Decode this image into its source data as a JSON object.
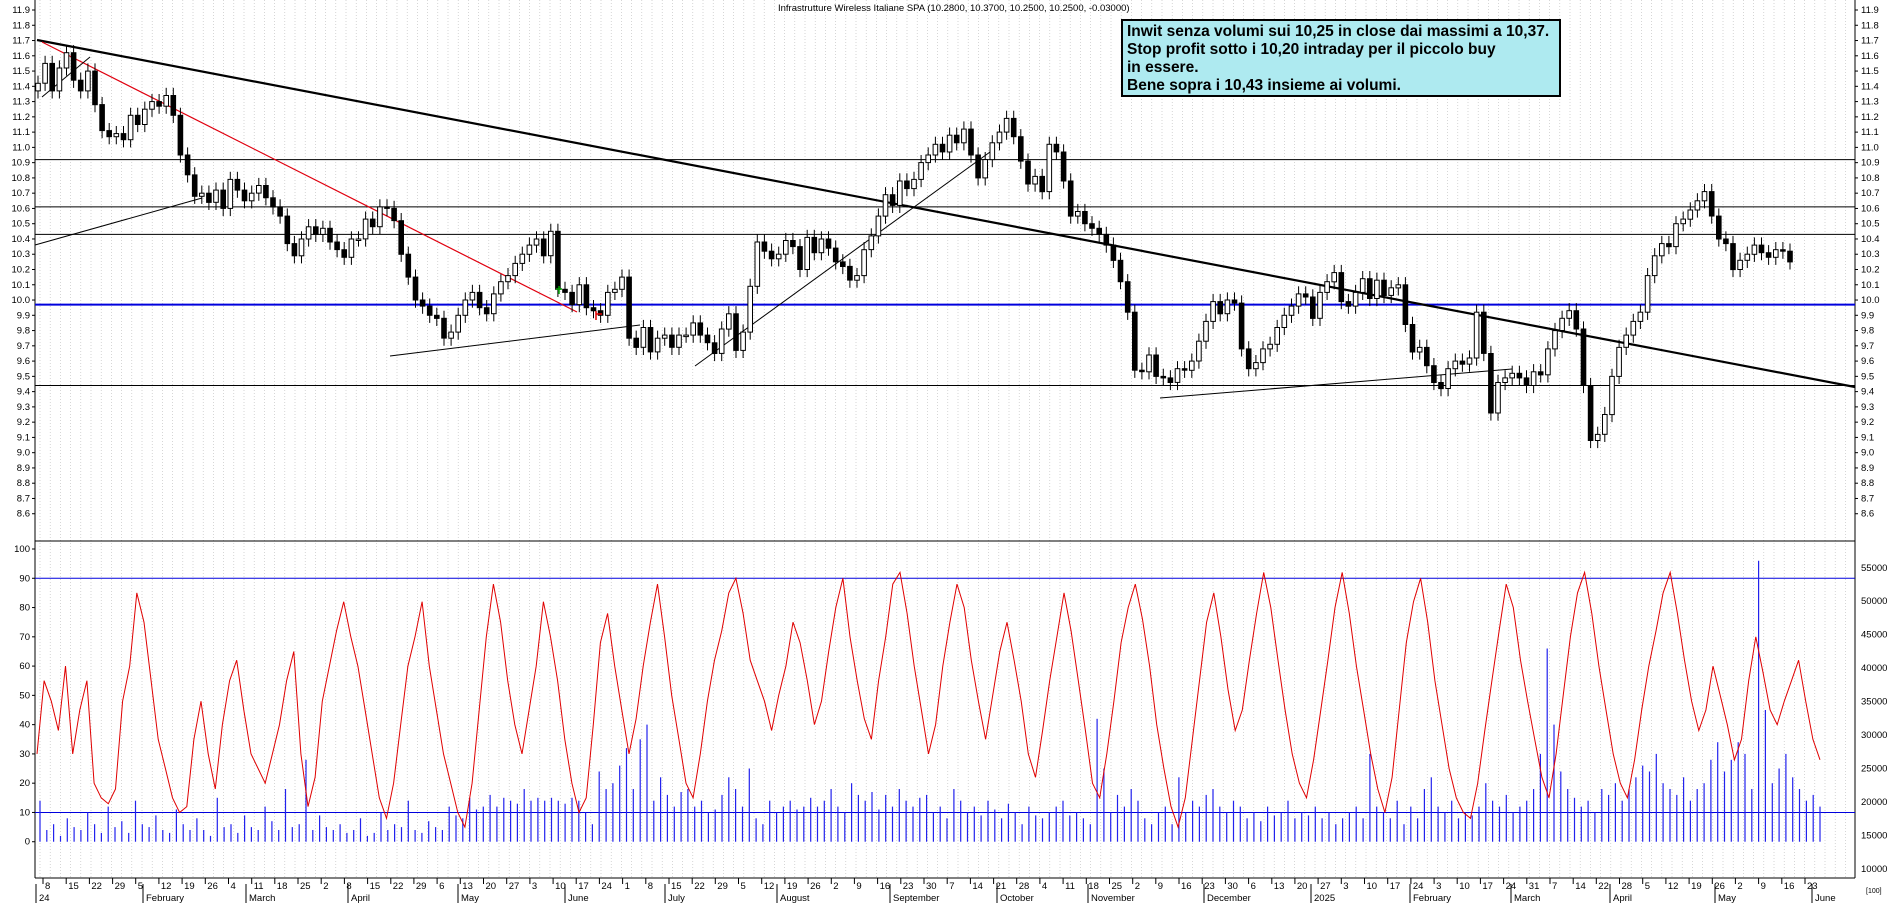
{
  "title": "Infrastrutture Wireless Italiane SPA (10.2800, 10.3700, 10.2500, 10.2500, -0.03000)",
  "annotation_lines": [
    "Inwit senza volumi sui 10,25 in close dai massimi a 10,37.",
    "Stop profit sotto i 10,20 intraday per il piccolo buy",
    "in essere.",
    "Bene sopra i 10,43 insieme ai volumi."
  ],
  "colors": {
    "candle": "#000000",
    "trendline_black": "#000000",
    "trendline_red": "#e0000f",
    "support_blue": "#0000dd",
    "oscillator": "#e00000",
    "volume": "#2222ee",
    "annotation_bg": "#aeeaf0",
    "grid": "#bbbbbb"
  },
  "chart_data": [
    {
      "type": "candlestick",
      "title": "Infrastrutture Wireless Italiane SPA (10.2800, 10.3700, 10.2500, 10.2500, -0.03000)",
      "ylim": [
        8.5,
        11.9
      ],
      "y_ticks": [
        "8.6",
        "8.7",
        "8.8",
        "8.9",
        "9.0",
        "9.1",
        "9.2",
        "9.3",
        "9.4",
        "9.5",
        "9.6",
        "9.7",
        "9.8",
        "9.9",
        "10.0",
        "10.1",
        "10.2",
        "10.3",
        "10.4",
        "10.5",
        "10.6",
        "10.7",
        "10.8",
        "10.9",
        "11.0",
        "11.1",
        "11.2",
        "11.3",
        "11.4",
        "11.5",
        "11.6",
        "11.7",
        "11.8",
        "11.9"
      ],
      "horizontal_levels": [
        10.92,
        10.61,
        10.43,
        9.97,
        9.44
      ],
      "blue_level": 9.97,
      "x_tick_labels": [
        "8",
        "15",
        "22",
        "29",
        "5",
        "12",
        "19",
        "26",
        "4",
        "11",
        "18",
        "25",
        "2",
        "8",
        "15",
        "22",
        "29",
        "6",
        "13",
        "20",
        "27",
        "3",
        "10",
        "17",
        "24",
        "1",
        "8",
        "15",
        "22",
        "29",
        "5",
        "12",
        "19",
        "26",
        "2",
        "9",
        "16",
        "23",
        "30",
        "7",
        "14",
        "21",
        "28",
        "4",
        "11",
        "18",
        "25",
        "2",
        "9",
        "16",
        "23",
        "30",
        "6",
        "13",
        "20",
        "27",
        "3",
        "10",
        "17",
        "24",
        "3",
        "10",
        "17",
        "24",
        "31",
        "7",
        "14",
        "22",
        "28",
        "5",
        "12",
        "19",
        "26",
        "2",
        "9",
        "16",
        "23"
      ],
      "month_labels": [
        "24",
        "February",
        "March",
        "April",
        "May",
        "June",
        "July",
        "August",
        "September",
        "October",
        "November",
        "December",
        "2025",
        "February",
        "March",
        "April",
        "May",
        "June"
      ],
      "closes": [
        11.42,
        11.55,
        11.37,
        11.52,
        11.62,
        11.44,
        11.37,
        11.5,
        11.28,
        11.11,
        11.07,
        11.09,
        11.05,
        11.21,
        11.15,
        11.25,
        11.3,
        11.27,
        11.34,
        11.21,
        10.95,
        10.82,
        10.68,
        10.7,
        10.64,
        10.72,
        10.6,
        10.79,
        10.72,
        10.65,
        10.7,
        10.75,
        10.67,
        10.61,
        10.55,
        10.37,
        10.29,
        10.4,
        10.48,
        10.43,
        10.47,
        10.38,
        10.33,
        10.28,
        10.4,
        10.4,
        10.53,
        10.48,
        10.61,
        10.6,
        10.52,
        10.3,
        10.15,
        10.0,
        9.96,
        9.9,
        9.88,
        9.75,
        9.79,
        9.9,
        10.0,
        10.05,
        9.95,
        9.91,
        10.04,
        10.12,
        10.16,
        10.24,
        10.3,
        10.36,
        10.4,
        10.29,
        10.45,
        10.07,
        10.05,
        9.97,
        10.1,
        9.95,
        9.93,
        9.9,
        10.05,
        10.07,
        10.15,
        9.75,
        9.69,
        9.82,
        9.66,
        9.75,
        9.77,
        9.69,
        9.77,
        9.77,
        9.85,
        9.77,
        9.72,
        9.65,
        9.81,
        9.91,
        9.67,
        9.79,
        10.09,
        10.38,
        10.32,
        10.27,
        10.3,
        10.39,
        10.35,
        10.2,
        10.41,
        10.31,
        10.4,
        10.34,
        10.25,
        10.22,
        10.13,
        10.16,
        10.33,
        10.42,
        10.55,
        10.69,
        10.62,
        10.78,
        10.73,
        10.79,
        10.9,
        10.95,
        11.02,
        10.97,
        11.08,
        11.03,
        11.12,
        10.95,
        10.8,
        10.92,
        11.03,
        11.1,
        11.19,
        11.07,
        10.91,
        10.76,
        10.81,
        10.71,
        11.02,
        10.97,
        10.78,
        10.55,
        10.58,
        10.5,
        10.47,
        10.43,
        10.36,
        10.26,
        10.12,
        9.92,
        9.54,
        9.53,
        9.64,
        9.5,
        9.49,
        9.46,
        9.55,
        9.54,
        9.6,
        9.73,
        9.86,
        9.99,
        9.91,
        10.0,
        9.98,
        9.68,
        9.55,
        9.59,
        9.68,
        9.71,
        9.82,
        9.9,
        9.96,
        10.04,
        10.02,
        9.88,
        10.05,
        10.12,
        10.18,
        9.99,
        9.96,
        10.05,
        10.14,
        10.01,
        10.13,
        10.03,
        10.08,
        10.1,
        9.84,
        9.66,
        9.69,
        9.57,
        9.46,
        9.42,
        9.55,
        9.6,
        9.58,
        9.62,
        9.92,
        9.65,
        9.26,
        9.46,
        9.49,
        9.52,
        9.49,
        9.44,
        9.53,
        9.51,
        9.68,
        9.8,
        9.88,
        9.93,
        9.81,
        9.44,
        9.08,
        9.12,
        9.25,
        9.5,
        9.69,
        9.77,
        9.86,
        9.92,
        10.16,
        10.29,
        10.37,
        10.35,
        10.5,
        10.53,
        10.59,
        10.65,
        10.71,
        10.55,
        10.4,
        10.37,
        10.2,
        10.26,
        10.3,
        10.36,
        10.31,
        10.28,
        10.33,
        10.32,
        10.25
      ]
    },
    {
      "type": "line",
      "title": "",
      "ylim": [
        -10,
        100
      ],
      "y_ticks": [
        "0",
        "10",
        "20",
        "30",
        "40",
        "50",
        "60",
        "70",
        "80",
        "90",
        "100"
      ],
      "levels": [
        90,
        10
      ],
      "series": [
        {
          "values": [
            30,
            55,
            48,
            38,
            60,
            30,
            45,
            55,
            20,
            15,
            13,
            18,
            48,
            60,
            85,
            75,
            55,
            35,
            25,
            15,
            10,
            12,
            35,
            48,
            30,
            18,
            40,
            55,
            62,
            45,
            30,
            25,
            20,
            30,
            40,
            55,
            65,
            30,
            12,
            22,
            48,
            60,
            72,
            82,
            70,
            60,
            45,
            30,
            15,
            8,
            20,
            40,
            60,
            70,
            82,
            60,
            45,
            30,
            20,
            10,
            5,
            20,
            45,
            70,
            88,
            75,
            55,
            40,
            30,
            45,
            60,
            82,
            70,
            55,
            35,
            20,
            10,
            15,
            40,
            68,
            78,
            60,
            45,
            30,
            42,
            60,
            75,
            88,
            70,
            50,
            35,
            20,
            15,
            30,
            48,
            62,
            72,
            85,
            90,
            78,
            62,
            55,
            48,
            38,
            50,
            60,
            75,
            68,
            55,
            40,
            48,
            65,
            80,
            90,
            70,
            55,
            42,
            35,
            55,
            70,
            88,
            92,
            78,
            60,
            45,
            30,
            40,
            60,
            75,
            88,
            80,
            62,
            48,
            35,
            50,
            65,
            75,
            62,
            48,
            30,
            22,
            38,
            55,
            70,
            85,
            72,
            55,
            38,
            20,
            15,
            30,
            48,
            68,
            80,
            88,
            76,
            60,
            40,
            25,
            12,
            5,
            15,
            35,
            55,
            75,
            85,
            70,
            52,
            38,
            45,
            62,
            78,
            92,
            80,
            62,
            45,
            30,
            20,
            15,
            28,
            45,
            62,
            80,
            92,
            78,
            60,
            45,
            30,
            18,
            10,
            22,
            45,
            68,
            82,
            90,
            75,
            55,
            40,
            25,
            15,
            10,
            8,
            20,
            38,
            55,
            72,
            88,
            80,
            62,
            48,
            35,
            22,
            15,
            30,
            50,
            70,
            85,
            92,
            78,
            60,
            45,
            30,
            20,
            15,
            28,
            45,
            60,
            72,
            85,
            92,
            78,
            62,
            48,
            38,
            45,
            60,
            50,
            40,
            28,
            35,
            55,
            70,
            58,
            45,
            40,
            48,
            55,
            62,
            48,
            35,
            28
          ]
        },
        {
          "values": [
            14,
            4,
            6,
            2,
            8,
            5,
            4,
            10,
            6,
            3,
            12,
            5,
            7,
            3,
            14,
            6,
            5,
            9,
            4,
            3,
            11,
            6,
            4,
            8,
            4,
            2,
            15,
            5,
            6,
            3,
            9,
            5,
            4,
            12,
            7,
            4,
            18,
            5,
            6,
            28,
            4,
            9,
            5,
            4,
            6,
            3,
            4,
            8,
            2,
            3,
            10,
            4,
            6,
            5,
            14,
            4,
            3,
            7,
            5,
            4,
            12,
            9,
            8,
            15,
            11,
            12,
            16,
            12,
            15,
            14,
            13,
            18,
            14,
            15,
            14,
            15,
            14,
            13,
            15,
            14,
            10,
            6,
            24,
            18,
            20,
            26,
            32,
            18,
            35,
            40,
            14,
            22,
            16,
            12,
            17,
            18,
            12,
            14,
            10,
            11,
            16,
            22,
            18,
            12,
            25,
            8,
            6,
            14,
            10,
            12,
            14,
            11,
            12,
            15,
            12,
            14,
            18,
            12,
            10,
            20,
            16,
            14,
            17,
            11,
            16,
            12,
            18,
            14,
            12,
            15,
            16,
            10,
            12,
            8,
            18,
            14,
            10,
            12,
            9,
            14,
            11,
            8,
            13,
            10,
            6,
            12,
            9,
            8,
            10,
            12,
            14,
            9,
            10,
            8,
            6,
            42,
            25,
            10,
            16,
            12,
            18,
            14,
            8,
            6,
            10,
            12,
            6,
            22,
            10,
            14,
            12,
            16,
            18,
            12,
            10,
            14,
            12,
            8,
            10,
            7,
            12,
            9,
            10,
            14,
            8,
            10,
            9,
            12,
            8,
            10,
            6,
            8,
            10,
            12,
            8,
            30,
            12,
            10,
            8,
            14,
            6,
            12,
            8,
            18,
            22,
            12,
            10,
            14,
            8,
            10,
            9,
            12,
            20,
            14,
            12,
            16,
            10,
            12,
            14,
            18,
            30,
            66,
            40,
            24,
            18,
            15,
            12,
            14,
            10,
            18,
            16,
            20,
            14,
            18,
            22,
            26,
            24,
            30,
            20,
            18,
            16,
            22,
            14,
            18,
            20,
            28,
            34,
            24,
            28,
            34,
            30,
            18,
            96,
            45,
            20,
            25,
            30,
            22,
            18,
            14,
            16,
            12
          ]
        }
      ]
    }
  ]
}
